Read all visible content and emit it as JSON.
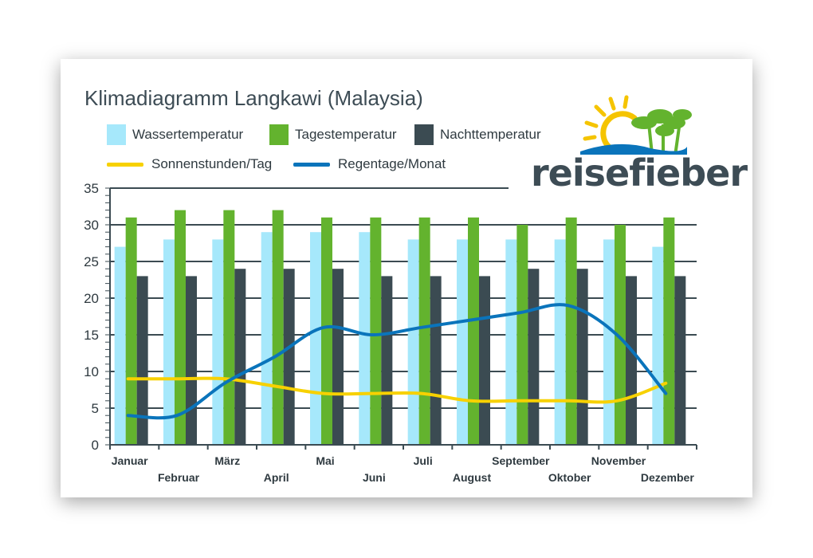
{
  "chart_data": {
    "type": "bar",
    "title": "Klimadiagramm Langkawi (Malaysia)",
    "categories": [
      "Januar",
      "Februar",
      "März",
      "April",
      "Mai",
      "Juni",
      "Juli",
      "August",
      "September",
      "Oktober",
      "November",
      "Dezember"
    ],
    "series": [
      {
        "name": "Wassertemperatur",
        "kind": "bar",
        "color": "#a6e8fb",
        "values": [
          27,
          28,
          28,
          29,
          29,
          29,
          28,
          28,
          28,
          28,
          28,
          27
        ]
      },
      {
        "name": "Tagestemperatur",
        "kind": "bar",
        "color": "#63b32e",
        "values": [
          31,
          32,
          32,
          32,
          31,
          31,
          31,
          31,
          30,
          31,
          30,
          31
        ]
      },
      {
        "name": "Nachttemperatur",
        "kind": "bar",
        "color": "#3b4b52",
        "values": [
          23,
          23,
          24,
          24,
          24,
          23,
          23,
          23,
          24,
          24,
          23,
          23
        ]
      },
      {
        "name": "Sonnenstunden/Tag",
        "kind": "line",
        "color": "#f7d100",
        "values": [
          9,
          9,
          9,
          8,
          7,
          7,
          7,
          6,
          6,
          6,
          6,
          8.4
        ]
      },
      {
        "name": "Regentage/Monat",
        "kind": "line",
        "color": "#0a74bb",
        "values": [
          4,
          4,
          8.5,
          12,
          16,
          15,
          16,
          17,
          18,
          19,
          15,
          7
        ]
      }
    ],
    "yticks": [
      0,
      5,
      10,
      15,
      20,
      25,
      30,
      35
    ],
    "ylim": [
      0,
      35
    ],
    "xlabel": "",
    "ylabel": "",
    "grid": true,
    "legend_position": "top"
  },
  "logo": {
    "text": "reisefieber",
    "colors": {
      "text": "#3d4c55",
      "sun": "#f5c400",
      "palm": "#63b32e",
      "wave": "#0a74bb"
    }
  }
}
